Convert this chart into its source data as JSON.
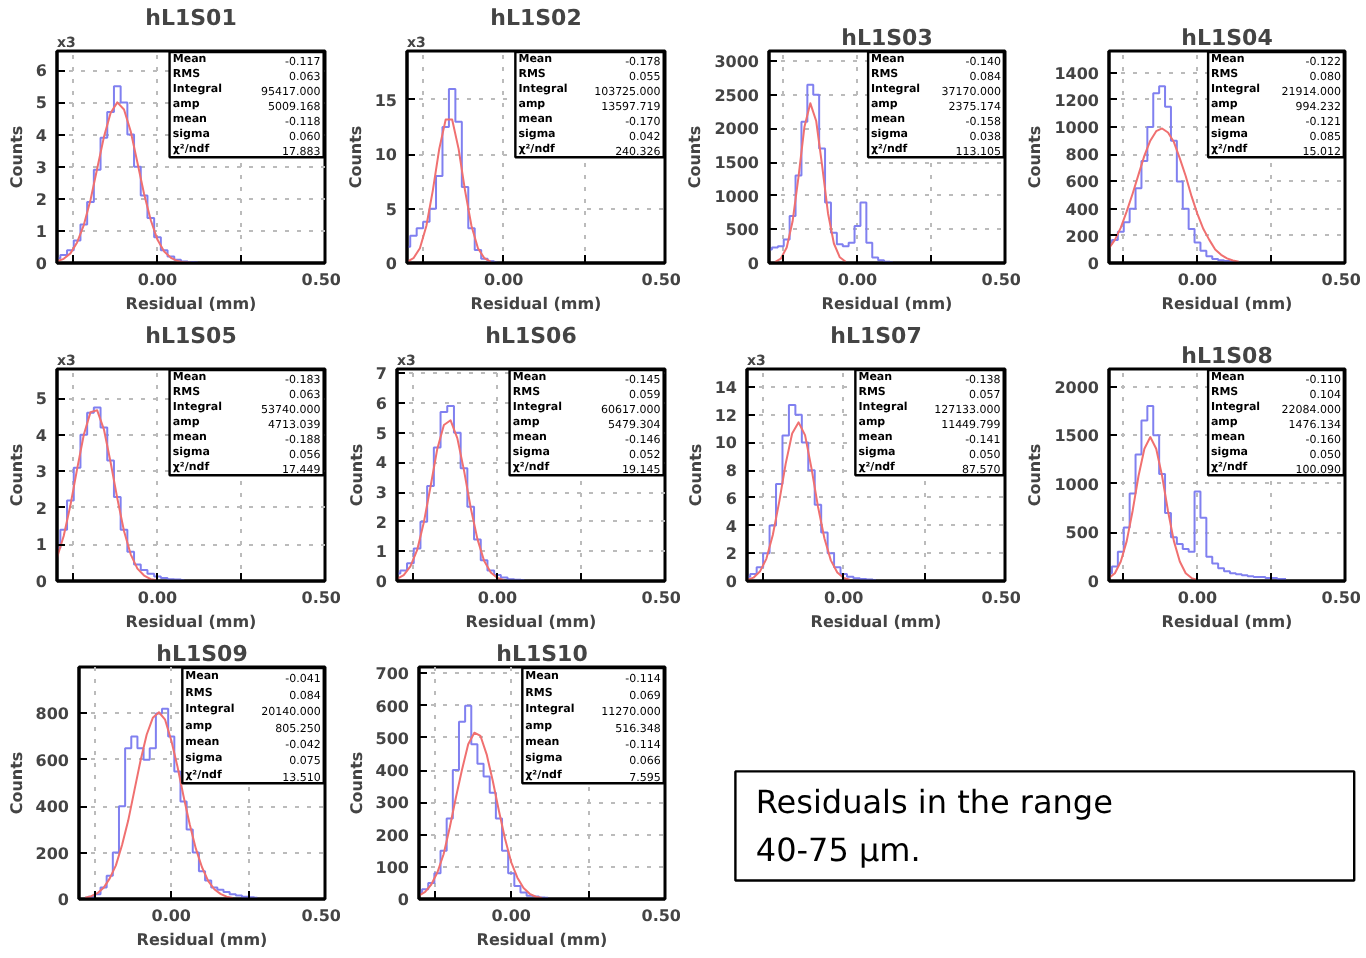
{
  "chart_data": [
    {
      "type": "line",
      "title": "hL1S01",
      "xlabel": "Residual (mm)",
      "ylabel": "Counts",
      "xlim": [
        -0.3,
        0.5
      ],
      "ylim": [
        0,
        6.6
      ],
      "xticks": [
        {
          "value": -0.25,
          "label": null
        },
        {
          "value": 0,
          "label": "0.00"
        },
        {
          "value": 0.25,
          "label": null
        },
        {
          "value": 0.5,
          "label": "0.50"
        }
      ],
      "yticks": [
        0,
        1,
        2,
        3,
        4,
        5,
        6
      ],
      "grid": true,
      "annotations": [
        "x3",
        "Mean",
        "-0.117",
        "RMS",
        "0.063",
        "Integral",
        "95417.000",
        "amp",
        "5009.168",
        "mean",
        "-0.118",
        "sigma",
        "0.060",
        "χ²/ndf",
        "17.883"
      ],
      "x": [
        -0.3,
        -0.28,
        -0.26,
        -0.24,
        -0.22,
        -0.2,
        -0.18,
        -0.16,
        -0.14,
        -0.12,
        -0.1,
        -0.08,
        -0.06,
        -0.04,
        -0.02,
        0,
        0.02,
        0.04,
        0.06,
        0.08,
        0.1,
        0.12
      ],
      "series": [
        {
          "type": "step",
          "color": "#8080f0",
          "values": [
            0.15,
            0.25,
            0.4,
            0.7,
            1.2,
            1.9,
            2.9,
            3.9,
            4.7,
            5.5,
            5.0,
            4.0,
            3.0,
            2.1,
            1.4,
            0.8,
            0.4,
            0.2,
            0.1,
            0.05,
            0.03,
            0.02
          ]
        },
        {
          "type": "line",
          "color": "#f07070",
          "values": [
            0.05,
            0.13,
            0.3,
            0.64,
            1.18,
            1.96,
            2.94,
            3.92,
            4.67,
            5.0,
            4.78,
            4.1,
            3.13,
            2.15,
            1.33,
            0.72,
            0.36,
            0.16,
            0.06,
            0.02,
            0.01,
            null
          ]
        }
      ]
    },
    {
      "type": "line",
      "title": "hL1S02",
      "xlabel": "Residual (mm)",
      "ylabel": "Counts",
      "xlim": [
        -0.3,
        0.5
      ],
      "ylim": [
        0,
        19.5
      ],
      "xticks": [
        {
          "value": -0.25,
          "label": null
        },
        {
          "value": 0,
          "label": "0.00"
        },
        {
          "value": 0.25,
          "label": null
        },
        {
          "value": 0.5,
          "label": "0.50"
        }
      ],
      "yticks": [
        0,
        5,
        10,
        15
      ],
      "grid": true,
      "annotations": [
        "x3",
        "Mean",
        "-0.178",
        "RMS",
        "0.055",
        "Integral",
        "103725.000",
        "amp",
        "13597.719",
        "mean",
        "-0.170",
        "sigma",
        "0.042",
        "χ²/ndf",
        "240.326"
      ],
      "x": [
        -0.3,
        -0.28,
        -0.26,
        -0.24,
        -0.22,
        -0.2,
        -0.18,
        -0.16,
        -0.14,
        -0.12,
        -0.1,
        -0.08,
        -0.06,
        -0.04,
        -0.02
      ],
      "series": [
        {
          "type": "step",
          "color": "#8080f0",
          "values": [
            1.5,
            2.5,
            3.2,
            3.8,
            5.0,
            8.0,
            12.5,
            16.0,
            13.0,
            7.0,
            3.2,
            1.2,
            0.4,
            0.15,
            0.05
          ]
        },
        {
          "type": "line",
          "color": "#f07070",
          "values": [
            0.11,
            0.44,
            1.36,
            3.4,
            6.66,
            10.5,
            13.2,
            13.2,
            10.5,
            6.66,
            3.4,
            1.36,
            0.44,
            0.11,
            null
          ]
        }
      ]
    },
    {
      "type": "line",
      "title": "hL1S03",
      "xlabel": "Residual (mm)",
      "ylabel": "Counts",
      "xlim": [
        -0.3,
        0.5
      ],
      "ylim": [
        0,
        3150
      ],
      "xticks": [
        {
          "value": -0.25,
          "label": null
        },
        {
          "value": 0,
          "label": "0.00"
        },
        {
          "value": 0.25,
          "label": null
        },
        {
          "value": 0.5,
          "label": "0.50"
        }
      ],
      "yticks": [
        0,
        500,
        1000,
        1500,
        2000,
        2500,
        3000
      ],
      "grid": true,
      "annotations": [
        "Mean",
        "-0.140",
        "RMS",
        "0.084",
        "Integral",
        "37170.000",
        "amp",
        "2375.174",
        "mean",
        "-0.158",
        "sigma",
        "0.038",
        "χ²/ndf",
        "113.105"
      ],
      "x": [
        -0.3,
        -0.28,
        -0.26,
        -0.24,
        -0.22,
        -0.2,
        -0.18,
        -0.16,
        -0.14,
        -0.12,
        -0.1,
        -0.08,
        -0.06,
        -0.04,
        -0.02,
        0,
        0.02,
        0.04,
        0.06,
        0.08,
        0.1,
        0.12
      ],
      "series": [
        {
          "type": "step",
          "color": "#8080f0",
          "values": [
            200,
            230,
            250,
            350,
            700,
            1300,
            2100,
            2650,
            2500,
            1700,
            900,
            450,
            280,
            250,
            300,
            550,
            900,
            300,
            80,
            40,
            20,
            10
          ]
        },
        {
          "type": "line",
          "color": "#f07070",
          "values": [
            null,
            14,
            64,
            230,
            620,
            1280,
            2020,
            2375,
            2110,
            1450,
            740,
            290,
            85,
            19,
            null,
            null,
            null,
            null,
            null,
            null,
            null,
            null
          ]
        }
      ]
    },
    {
      "type": "line",
      "title": "hL1S04",
      "xlabel": "Residual (mm)",
      "ylabel": "Counts",
      "xlim": [
        -0.3,
        0.5
      ],
      "ylim": [
        0,
        1560
      ],
      "xticks": [
        {
          "value": -0.25,
          "label": null
        },
        {
          "value": 0,
          "label": "0.00"
        },
        {
          "value": 0.25,
          "label": null
        },
        {
          "value": 0.5,
          "label": "0.50"
        }
      ],
      "yticks": [
        0,
        200,
        400,
        600,
        800,
        1000,
        1200,
        1400
      ],
      "grid": true,
      "annotations": [
        "Mean",
        "-0.122",
        "RMS",
        "0.080",
        "Integral",
        "21914.000",
        "amp",
        "994.232",
        "mean",
        "-0.121",
        "sigma",
        "0.085",
        "χ²/ndf",
        "15.012"
      ],
      "x": [
        -0.3,
        -0.28,
        -0.26,
        -0.24,
        -0.22,
        -0.2,
        -0.18,
        -0.16,
        -0.14,
        -0.12,
        -0.1,
        -0.08,
        -0.06,
        -0.04,
        -0.02,
        0,
        0.02,
        0.04,
        0.06,
        0.08,
        0.1,
        0.12,
        0.14
      ],
      "series": [
        {
          "type": "step",
          "color": "#8080f0",
          "values": [
            140,
            170,
            230,
            300,
            400,
            550,
            750,
            1000,
            1250,
            1300,
            1150,
            900,
            600,
            400,
            250,
            150,
            90,
            50,
            30,
            20,
            15,
            10,
            8
          ]
        },
        {
          "type": "line",
          "color": "#f07070",
          "values": [
            110,
            170,
            260,
            380,
            510,
            650,
            790,
            900,
            970,
            990,
            960,
            890,
            770,
            640,
            490,
            360,
            250,
            170,
            100,
            60,
            34,
            18,
            9
          ]
        }
      ]
    },
    {
      "type": "line",
      "title": "hL1S05",
      "xlabel": "Residual (mm)",
      "ylabel": "Counts",
      "xlim": [
        -0.3,
        0.5
      ],
      "ylim": [
        0,
        5.8
      ],
      "xticks": [
        {
          "value": -0.25,
          "label": null
        },
        {
          "value": 0,
          "label": "0.00"
        },
        {
          "value": 0.25,
          "label": null
        },
        {
          "value": 0.5,
          "label": "0.50"
        }
      ],
      "yticks": [
        0,
        1,
        2,
        3,
        4,
        5
      ],
      "grid": true,
      "annotations": [
        "x3",
        "Mean",
        "-0.183",
        "RMS",
        "0.063",
        "Integral",
        "53740.000",
        "amp",
        "4713.039",
        "mean",
        "-0.188",
        "sigma",
        "0.056",
        "χ²/ndf",
        "17.449"
      ],
      "x": [
        -0.3,
        -0.28,
        -0.26,
        -0.24,
        -0.22,
        -0.2,
        -0.18,
        -0.16,
        -0.14,
        -0.12,
        -0.1,
        -0.08,
        -0.06,
        -0.04,
        -0.02,
        0,
        0.02,
        0.04,
        0.06,
        0.08
      ],
      "series": [
        {
          "type": "step",
          "color": "#8080f0",
          "values": [
            0.9,
            1.4,
            2.2,
            3.1,
            4.0,
            4.6,
            4.75,
            4.2,
            3.3,
            2.3,
            1.4,
            0.8,
            0.45,
            0.3,
            0.2,
            0.12,
            0.08,
            0.05,
            0.04,
            0.03
          ]
        },
        {
          "type": "line",
          "color": "#f07070",
          "values": [
            0.64,
            1.23,
            2.07,
            3.06,
            4.0,
            4.62,
            4.67,
            4.15,
            3.25,
            2.26,
            1.37,
            0.73,
            0.34,
            0.15,
            0.05,
            0.02,
            null,
            null,
            null,
            null
          ]
        }
      ]
    },
    {
      "type": "line",
      "title": "hL1S06",
      "xlabel": "Residual (mm)",
      "ylabel": "Counts",
      "xlim": [
        -0.3,
        0.5
      ],
      "ylim": [
        0,
        7.15
      ],
      "xticks": [
        {
          "value": -0.25,
          "label": null
        },
        {
          "value": 0,
          "label": "0.00"
        },
        {
          "value": 0.25,
          "label": null
        },
        {
          "value": 0.5,
          "label": "0.50"
        }
      ],
      "yticks": [
        0,
        1,
        2,
        3,
        4,
        5,
        6,
        7
      ],
      "grid": true,
      "annotations": [
        "x3",
        "Mean",
        "-0.145",
        "RMS",
        "0.059",
        "Integral",
        "60617.000",
        "amp",
        "5479.304",
        "mean",
        "-0.146",
        "sigma",
        "0.052",
        "χ²/ndf",
        "19.145"
      ],
      "x": [
        -0.3,
        -0.28,
        -0.26,
        -0.24,
        -0.22,
        -0.2,
        -0.18,
        -0.16,
        -0.14,
        -0.12,
        -0.1,
        -0.08,
        -0.06,
        -0.04,
        -0.02,
        0,
        0.02,
        0.04,
        0.06,
        0.08
      ],
      "series": [
        {
          "type": "step",
          "color": "#8080f0",
          "values": [
            0.25,
            0.35,
            0.6,
            1.1,
            2.0,
            3.2,
            4.5,
            5.7,
            5.9,
            5.0,
            3.8,
            2.5,
            1.4,
            0.7,
            0.35,
            0.2,
            0.12,
            0.06,
            0.04,
            0.03
          ]
        },
        {
          "type": "line",
          "color": "#f07070",
          "values": [
            0.07,
            0.2,
            0.49,
            1.04,
            1.97,
            3.18,
            4.44,
            5.26,
            5.42,
            4.82,
            3.73,
            2.47,
            1.42,
            0.68,
            0.29,
            0.1,
            0.03,
            null,
            null,
            null
          ]
        }
      ]
    },
    {
      "type": "line",
      "title": "hL1S07",
      "xlabel": "Residual (mm)",
      "ylabel": "Counts",
      "xlim": [
        -0.3,
        0.5
      ],
      "ylim": [
        0,
        15.3
      ],
      "xticks": [
        {
          "value": -0.25,
          "label": null
        },
        {
          "value": 0,
          "label": "0.00"
        },
        {
          "value": 0.25,
          "label": null
        },
        {
          "value": 0.5,
          "label": "0.50"
        }
      ],
      "yticks": [
        0,
        2,
        4,
        6,
        8,
        10,
        12,
        14
      ],
      "grid": true,
      "annotations": [
        "x3",
        "Mean",
        "-0.138",
        "RMS",
        "0.057",
        "Integral",
        "127133.000",
        "amp",
        "11449.799",
        "mean",
        "-0.141",
        "sigma",
        "0.050",
        "χ²/ndf",
        "87.570"
      ],
      "x": [
        -0.3,
        -0.28,
        -0.26,
        -0.24,
        -0.22,
        -0.2,
        -0.18,
        -0.16,
        -0.14,
        -0.12,
        -0.1,
        -0.08,
        -0.06,
        -0.04,
        -0.02,
        0,
        0.02,
        0.04,
        0.06,
        0.08,
        0.1
      ],
      "series": [
        {
          "type": "step",
          "color": "#8080f0",
          "values": [
            0.3,
            0.5,
            1.0,
            2.0,
            4.0,
            7.0,
            10.5,
            12.7,
            12.0,
            10.0,
            8.0,
            5.5,
            3.5,
            2.0,
            1.0,
            0.5,
            0.3,
            0.2,
            0.15,
            0.1,
            0.08
          ]
        },
        {
          "type": "line",
          "color": "#f07070",
          "values": [
            0.07,
            0.24,
            0.68,
            1.6,
            3.32,
            5.73,
            8.47,
            10.65,
            11.45,
            10.53,
            8.13,
            5.38,
            3.09,
            1.49,
            0.61,
            0.22,
            0.07,
            null,
            null,
            null,
            null
          ]
        }
      ]
    },
    {
      "type": "line",
      "title": "hL1S08",
      "xlabel": "Residual (mm)",
      "ylabel": "Counts",
      "xlim": [
        -0.3,
        0.5
      ],
      "ylim": [
        0,
        2180
      ],
      "xticks": [
        {
          "value": -0.25,
          "label": null
        },
        {
          "value": 0,
          "label": "0.00"
        },
        {
          "value": 0.25,
          "label": null
        },
        {
          "value": 0.5,
          "label": "0.50"
        }
      ],
      "yticks": [
        0,
        500,
        1000,
        1500,
        2000
      ],
      "grid": true,
      "annotations": [
        "Mean",
        "-0.110",
        "RMS",
        "0.104",
        "Integral",
        "22084.000",
        "amp",
        "1476.134",
        "mean",
        "-0.160",
        "sigma",
        "0.050",
        "χ²/ndf",
        "100.090"
      ],
      "x": [
        -0.3,
        -0.28,
        -0.26,
        -0.24,
        -0.22,
        -0.2,
        -0.18,
        -0.16,
        -0.14,
        -0.12,
        -0.1,
        -0.08,
        -0.06,
        -0.04,
        -0.02,
        0,
        0.02,
        0.04,
        0.06,
        0.08,
        0.1,
        0.12,
        0.14,
        0.16,
        0.18,
        0.2,
        0.22,
        0.24,
        0.26,
        0.28,
        0.3
      ],
      "series": [
        {
          "type": "step",
          "color": "#8080f0",
          "values": [
            80,
            150,
            300,
            550,
            900,
            1300,
            1650,
            1800,
            1500,
            1100,
            700,
            450,
            380,
            330,
            300,
            920,
            650,
            250,
            180,
            130,
            100,
            80,
            70,
            60,
            50,
            40,
            40,
            30,
            30,
            20,
            20
          ]
        },
        {
          "type": "line",
          "color": "#f07070",
          "values": [
            30,
            80,
            200,
            410,
            720,
            1080,
            1360,
            1480,
            1360,
            1080,
            720,
            410,
            200,
            80,
            30,
            10,
            null,
            null,
            null,
            null,
            null,
            null,
            null,
            null,
            null,
            null,
            null,
            null,
            null,
            null,
            null
          ]
        }
      ]
    },
    {
      "type": "line",
      "title": "hL1S09",
      "xlabel": "Residual (mm)",
      "ylabel": "Counts",
      "xlim": [
        -0.3,
        0.5
      ],
      "ylim": [
        0,
        1000
      ],
      "xticks": [
        {
          "value": -0.25,
          "label": null
        },
        {
          "value": 0,
          "label": "0.00"
        },
        {
          "value": 0.25,
          "label": null
        },
        {
          "value": 0.5,
          "label": "0.50"
        }
      ],
      "yticks": [
        0,
        200,
        400,
        600,
        800
      ],
      "grid": true,
      "annotations": [
        "Mean",
        "-0.041",
        "RMS",
        "0.084",
        "Integral",
        "20140.000",
        "amp",
        "805.250",
        "mean",
        "-0.042",
        "sigma",
        "0.075",
        "χ²/ndf",
        "13.510"
      ],
      "x": [
        -0.28,
        -0.26,
        -0.24,
        -0.22,
        -0.2,
        -0.18,
        -0.16,
        -0.14,
        -0.12,
        -0.1,
        -0.08,
        -0.06,
        -0.04,
        -0.02,
        0,
        0.02,
        0.04,
        0.06,
        0.08,
        0.1,
        0.12,
        0.14,
        0.16,
        0.18,
        0.2,
        0.22,
        0.24,
        0.26,
        0.28
      ],
      "series": [
        {
          "type": "step",
          "color": "#8080f0",
          "values": [
            5,
            10,
            20,
            50,
            100,
            200,
            400,
            650,
            700,
            650,
            600,
            650,
            800,
            820,
            700,
            550,
            420,
            300,
            200,
            120,
            80,
            50,
            40,
            30,
            20,
            15,
            10,
            8,
            5
          ]
        },
        {
          "type": "line",
          "color": "#f07070",
          "values": [
            6,
            12,
            25,
            48,
            89,
            145,
            233,
            338,
            467,
            596,
            708,
            781,
            805,
            773,
            684,
            572,
            443,
            322,
            217,
            137,
            78,
            42,
            22,
            10,
            4,
            null,
            null,
            null,
            null
          ]
        }
      ]
    },
    {
      "type": "line",
      "title": "hL1S10",
      "xlabel": "Residual (mm)",
      "ylabel": "Counts",
      "xlim": [
        -0.3,
        0.5
      ],
      "ylim": [
        0,
        720
      ],
      "xticks": [
        {
          "value": -0.25,
          "label": null
        },
        {
          "value": 0,
          "label": "0.00"
        },
        {
          "value": 0.25,
          "label": null
        },
        {
          "value": 0.5,
          "label": "0.50"
        }
      ],
      "yticks": [
        0,
        100,
        200,
        300,
        400,
        500,
        600,
        700
      ],
      "grid": true,
      "annotations": [
        "Mean",
        "-0.114",
        "RMS",
        "0.069",
        "Integral",
        "11270.000",
        "amp",
        "516.348",
        "mean",
        "-0.114",
        "sigma",
        "0.066",
        "χ²/ndf",
        "7.595"
      ],
      "x": [
        -0.3,
        -0.28,
        -0.26,
        -0.24,
        -0.22,
        -0.2,
        -0.18,
        -0.16,
        -0.14,
        -0.12,
        -0.1,
        -0.08,
        -0.06,
        -0.04,
        -0.02,
        0,
        0.02,
        0.04,
        0.06,
        0.08,
        0.1,
        0.12
      ],
      "series": [
        {
          "type": "step",
          "color": "#8080f0",
          "values": [
            20,
            30,
            50,
            80,
            150,
            250,
            400,
            550,
            600,
            480,
            420,
            380,
            330,
            250,
            150,
            80,
            40,
            20,
            10,
            8,
            5,
            4
          ]
        },
        {
          "type": "line",
          "color": "#f07070",
          "values": [
            10,
            22,
            45,
            83,
            139,
            222,
            315,
            402,
            480,
            516,
            506,
            449,
            366,
            273,
            186,
            114,
            66,
            34,
            16,
            7,
            3,
            null
          ]
        }
      ]
    },
    {
      "type": "other",
      "annotations": [
        "Residuals in the range 40-75 μm."
      ]
    }
  ]
}
